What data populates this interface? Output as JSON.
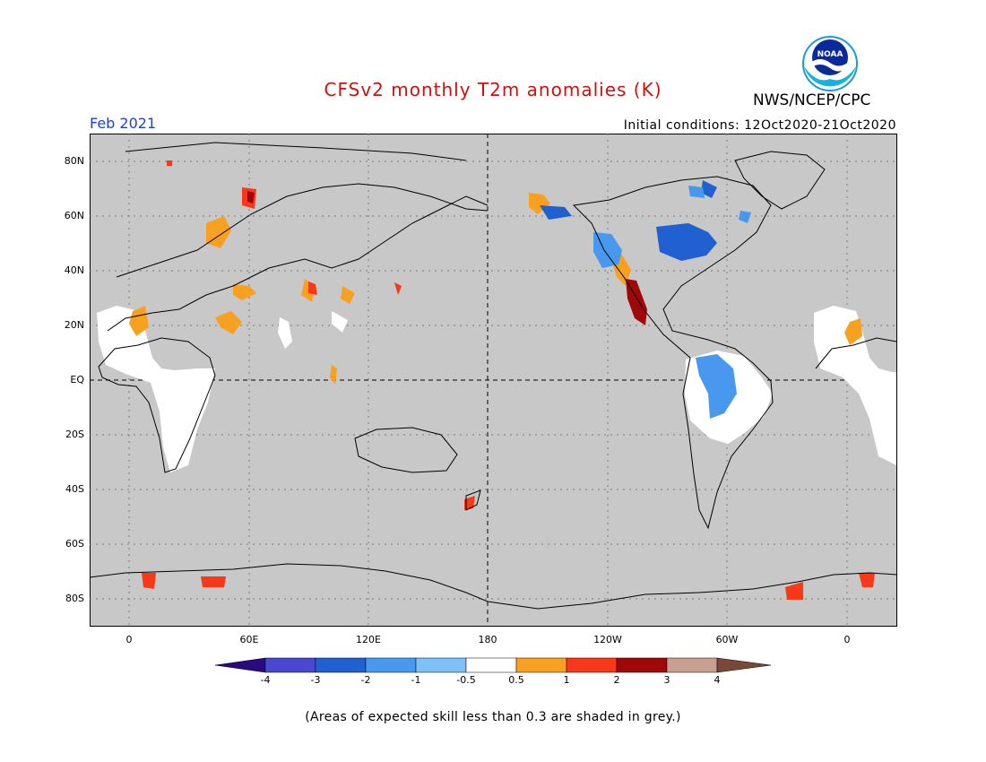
{
  "title": "CFSv2 monthly T2m anomalies (K)",
  "month": "Feb 2021",
  "initial_conditions": "Initial conditions: 12Oct2020-21Oct2020",
  "agency": "NWS/NCEP/CPC",
  "logo_text": "NOAA",
  "map": {
    "y_labels": [
      "80N",
      "60N",
      "40N",
      "20N",
      "EQ",
      "20S",
      "40S",
      "60S",
      "80S"
    ],
    "x_labels": [
      "0",
      "60E",
      "120E",
      "180",
      "120W",
      "60W",
      "0"
    ],
    "background_grey": "#c8c8c8",
    "equator_dashed": true,
    "dateline_dashed": true
  },
  "colorbar": {
    "labels": [
      "-4",
      "-3",
      "-2",
      "-1",
      "-0.5",
      "0.5",
      "1",
      "2",
      "3",
      "4"
    ],
    "colors": [
      "#2a0a80",
      "#4848d0",
      "#2060d0",
      "#4898f0",
      "#80c0f8",
      "#ffffff",
      "#f8a020",
      "#f83818",
      "#a00808",
      "#c8a090",
      "#7a4838"
    ]
  },
  "footnote": "(Areas of expected skill less than 0.3 are shaded in grey.)"
}
